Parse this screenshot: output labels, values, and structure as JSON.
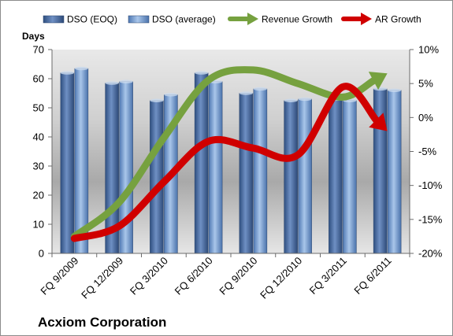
{
  "chart_data": {
    "type": "bar",
    "title": "Acxiom Corporation",
    "categories": [
      "FQ 9/2009",
      "FQ 12/2009",
      "FQ 3/2010",
      "FQ 6/2010",
      "FQ 9/2010",
      "FQ 12/2010",
      "FQ 3/2011",
      "FQ 6/2011"
    ],
    "left_axis": {
      "label": "Days",
      "ylim": [
        0,
        70
      ],
      "ticks": [
        "0",
        "10",
        "20",
        "30",
        "40",
        "50",
        "60",
        "70"
      ]
    },
    "right_axis": {
      "ylim": [
        -20,
        10
      ],
      "ticks": [
        "-20%",
        "-15%",
        "-10%",
        "-5%",
        "0%",
        "5%",
        "10%"
      ]
    },
    "series": [
      {
        "name": "DSO (EOQ)",
        "kind": "bar",
        "axis": "left",
        "color": "#4f6fa3",
        "values": [
          62,
          58.5,
          52.5,
          62,
          55,
          52.5,
          53,
          56.5
        ]
      },
      {
        "name": "DSO (average)",
        "kind": "bar",
        "axis": "left",
        "color": "#7fa3d3",
        "values": [
          63.5,
          59,
          54.5,
          59,
          56.5,
          53,
          52.5,
          56
        ]
      },
      {
        "name": "Revenue Growth",
        "kind": "line-arrow",
        "axis": "right",
        "color": "#76a13f",
        "values": [
          -17.5,
          -12.5,
          -3,
          5.5,
          7,
          5,
          3,
          6.5
        ]
      },
      {
        "name": "AR Growth",
        "kind": "line-arrow",
        "axis": "right",
        "color": "#d00000",
        "values": [
          -17.8,
          -16,
          -9.5,
          -3.5,
          -4.5,
          -5.5,
          4.5,
          -2
        ]
      }
    ],
    "grid": false,
    "legend": "top"
  }
}
